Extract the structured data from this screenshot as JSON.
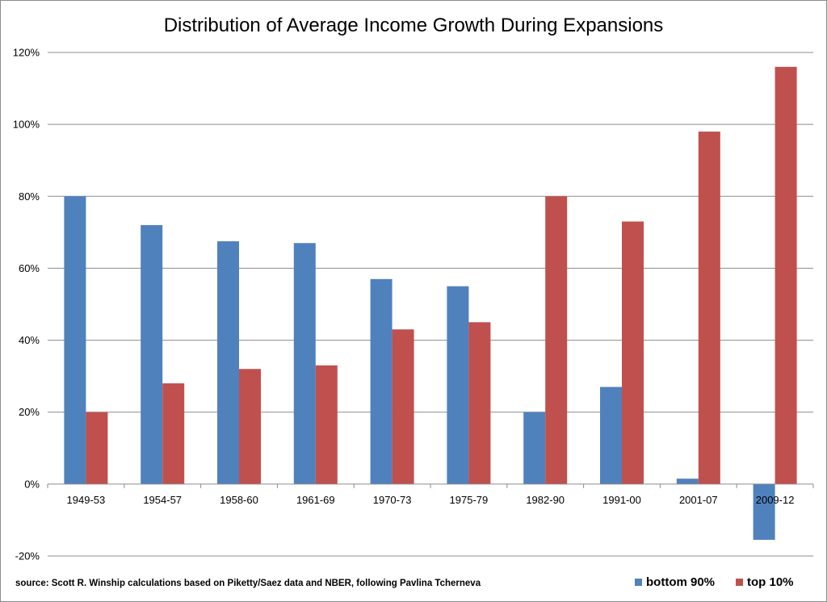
{
  "chart_data": {
    "type": "bar",
    "title": "Distribution of Average Income Growth During Expansions",
    "categories": [
      "1949-53",
      "1954-57",
      "1958-60",
      "1961-69",
      "1970-73",
      "1975-79",
      "1982-90",
      "1991-00",
      "2001-07",
      "2009-12"
    ],
    "series": [
      {
        "name": "bottom 90%",
        "color": "#4F81BD",
        "values": [
          80,
          72,
          67.5,
          67,
          57,
          55,
          20,
          27,
          1.5,
          -15.5
        ]
      },
      {
        "name": "top 10%",
        "color": "#C0504D",
        "values": [
          20,
          28,
          32,
          33,
          43,
          45,
          80,
          73,
          98,
          116
        ]
      }
    ],
    "ylim": [
      -20,
      120
    ],
    "yticks": [
      -20,
      0,
      20,
      40,
      60,
      80,
      100,
      120
    ],
    "ytick_labels": [
      "-20%",
      "0%",
      "20%",
      "40%",
      "60%",
      "80%",
      "100%",
      "120%"
    ],
    "grid": true,
    "legend_position": "bottom-right",
    "source_note": "source: Scott R. Winship calculations based on Piketty/Saez data and NBER, following Pavlina Tcherneva"
  }
}
